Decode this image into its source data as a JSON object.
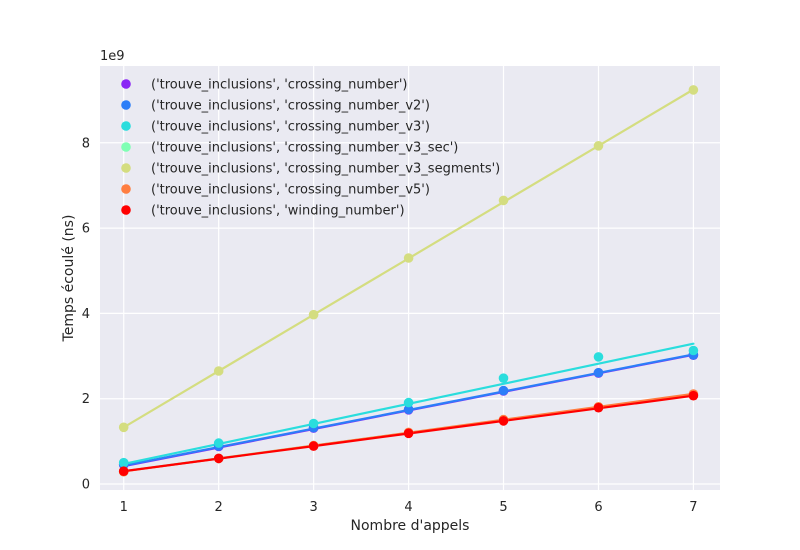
{
  "chart_data": {
    "type": "line",
    "title": "",
    "xlabel": "Nombre d'appels",
    "ylabel": "Temps écoulé (ns)",
    "y_offset_label": "1e9",
    "xlim": [
      0.75,
      7.28
    ],
    "ylim": [
      -0.14,
      9.8
    ],
    "x": [
      1,
      2,
      3,
      4,
      5,
      6,
      7
    ],
    "x_ticks": [
      1,
      2,
      3,
      4,
      5,
      6,
      7
    ],
    "y_ticks": [
      0,
      2,
      4,
      6,
      8
    ],
    "y_tick_labels": [
      "0",
      "2",
      "4",
      "6",
      "8"
    ],
    "grid": true,
    "legend_position": "top-left",
    "series": [
      {
        "name": "('trouve_inclusions', 'crossing_number')",
        "color": "#8a24f5",
        "points": [
          0.45,
          0.88,
          1.31,
          1.74,
          2.18,
          2.6,
          3.02
        ],
        "fit": [
          0.42,
          0.855,
          1.29,
          1.725,
          2.16,
          2.595,
          3.03
        ]
      },
      {
        "name": "('trouve_inclusions', 'crossing_number_v2')",
        "color": "#2c7ef8",
        "points": [
          0.46,
          0.89,
          1.32,
          1.75,
          2.19,
          2.61,
          3.03
        ],
        "fit": [
          0.43,
          0.865,
          1.3,
          1.735,
          2.17,
          2.605,
          3.04
        ]
      },
      {
        "name": "('trouve_inclusions', 'crossing_number_v3')",
        "color": "#2adddd",
        "points": [
          0.5,
          0.96,
          1.42,
          1.91,
          2.48,
          2.98,
          3.13
        ],
        "fit": [
          0.47,
          0.94,
          1.41,
          1.88,
          2.35,
          2.82,
          3.29
        ]
      },
      {
        "name": "('trouve_inclusions', 'crossing_number_v3_sec')",
        "color": "#80ffb4",
        "points": [
          0.29,
          0.6,
          0.9,
          1.2,
          1.5,
          1.8,
          2.09
        ],
        "fit": [
          0.3,
          0.6,
          0.9,
          1.2,
          1.5,
          1.8,
          2.1
        ]
      },
      {
        "name": "('trouve_inclusions', 'crossing_number_v3_segments')",
        "color": "#d4dd80",
        "points": [
          1.33,
          2.65,
          3.97,
          5.3,
          6.65,
          7.93,
          9.24
        ],
        "fit": [
          1.33,
          2.65,
          3.97,
          5.29,
          6.61,
          7.93,
          9.25
        ]
      },
      {
        "name": "('trouve_inclusions', 'crossing_number_v5')",
        "color": "#ff7e41",
        "points": [
          0.29,
          0.6,
          0.9,
          1.21,
          1.51,
          1.81,
          2.11
        ],
        "fit": [
          0.295,
          0.598,
          0.901,
          1.204,
          1.507,
          1.81,
          2.113
        ]
      },
      {
        "name": "('trouve_inclusions', 'winding_number')",
        "color": "#ff0000",
        "points": [
          0.3,
          0.6,
          0.89,
          1.19,
          1.48,
          1.79,
          2.07
        ],
        "fit": [
          0.3,
          0.595,
          0.89,
          1.185,
          1.48,
          1.775,
          2.07
        ]
      }
    ]
  }
}
